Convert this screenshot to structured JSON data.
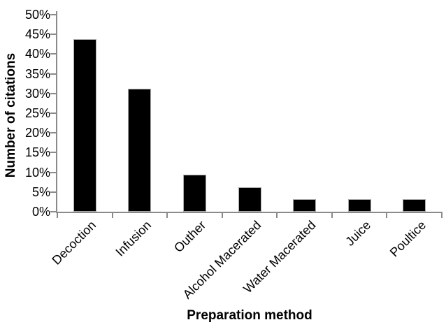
{
  "figure": {
    "background": "#ffffff"
  },
  "chart_data": {
    "type": "bar",
    "xlabel": "Preparation method",
    "ylabel": "Number of citations",
    "categories": [
      "Decoction",
      "Infusion",
      "Outher",
      "Alcohol Macerated",
      "Water Macerated",
      "Juice",
      "Poultice"
    ],
    "values": [
      43.75,
      31.25,
      9.375,
      6.25,
      3.125,
      3.125,
      3.125
    ],
    "value_unit": "%",
    "ylim": [
      0,
      50
    ],
    "ytick_labels": [
      "0%",
      "5%",
      "10%",
      "15%",
      "20%",
      "25%",
      "30%",
      "35%",
      "40%",
      "45%",
      "50%"
    ],
    "x_tick_rotation_deg": 45,
    "grid": false,
    "legend": "none",
    "bar_color": "#000000",
    "bar_border_color": "#aaaaaa",
    "axis_color": "#8a8a8a",
    "text_color": "#000000"
  }
}
